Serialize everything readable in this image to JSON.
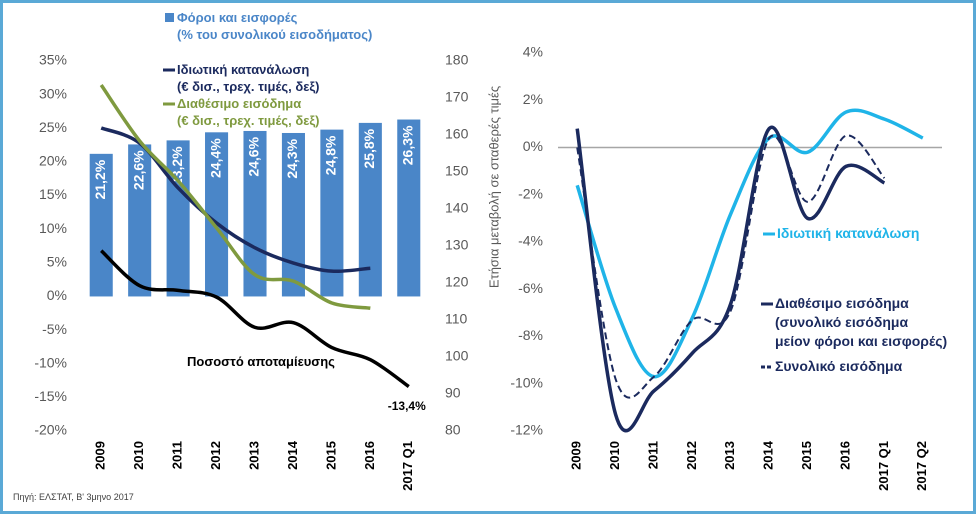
{
  "chart_data": [
    {
      "type": "bar",
      "categories": [
        "2009",
        "2010",
        "2011",
        "2012",
        "2013",
        "2014",
        "2015",
        "2016",
        "2017 Q1"
      ],
      "series": [
        {
          "name": "Φόροι και εισφορές\n(% του συνολικού εισοδήματος)",
          "type": "bar",
          "color": "#4a86c8",
          "values": [
            21.2,
            22.6,
            23.2,
            24.4,
            24.6,
            24.3,
            24.8,
            25.8,
            26.3
          ],
          "value_labels": [
            "21,2%",
            "22,6%",
            "23,2%",
            "24,4%",
            "24,6%",
            "24,3%",
            "24,8%",
            "25,8%",
            "26,3%"
          ]
        },
        {
          "name": "Ιδιωτική κατανάλωση\n(€ δισ., τρεχ. τιμές, δεξ)",
          "type": "line",
          "axis": "y2",
          "color": "#1b2a5e",
          "values": [
            161.9,
            157.8,
            145.7,
            136.2,
            129.5,
            125.4,
            123.2,
            124.0,
            null
          ]
        },
        {
          "name": "Διαθέσιμο εισόδημα\n(€ δισ., τρεχ. τιμές, δεξ)",
          "type": "line",
          "axis": "y2",
          "color": "#7f9a3f",
          "values": [
            173.5,
            158.4,
            147.6,
            134.9,
            122.2,
            120.5,
            114.6,
            113.2,
            null
          ]
        },
        {
          "name": "Ποσοστό αποταμίευσης",
          "type": "line",
          "color": "#000000",
          "values": [
            6.8,
            1.6,
            0.9,
            -0.1,
            -4.6,
            -3.9,
            -7.6,
            -9.4,
            -13.4
          ],
          "value_labels": [
            null,
            null,
            null,
            null,
            null,
            null,
            null,
            null,
            "-13,4%"
          ]
        }
      ],
      "ylim": [
        -20,
        35
      ],
      "yticks": [
        {
          "value": -20,
          "label": "-20%"
        },
        {
          "value": -15,
          "label": "-15%"
        },
        {
          "value": -10,
          "label": "-10%"
        },
        {
          "value": -5,
          "label": "-5%"
        },
        {
          "value": 0,
          "label": "0%"
        },
        {
          "value": 5,
          "label": "5%"
        },
        {
          "value": 10,
          "label": "10%"
        },
        {
          "value": 15,
          "label": "15%"
        },
        {
          "value": 20,
          "label": "20%"
        },
        {
          "value": 25,
          "label": "25%"
        },
        {
          "value": 30,
          "label": "30%"
        },
        {
          "value": 35,
          "label": "35%"
        }
      ],
      "y2lim": [
        80,
        180
      ],
      "y2ticks": [
        80,
        90,
        100,
        110,
        120,
        130,
        140,
        150,
        160,
        170,
        180
      ],
      "source": "Πηγή: ΕΛΣΤΑΤ, Β' 3μηνο 2017"
    },
    {
      "type": "line",
      "y_label": "Ετήσια μεταβολή σε σταθερές τιμές",
      "categories": [
        "2009",
        "2010",
        "2011",
        "2012",
        "2013",
        "2014",
        "2015",
        "2016",
        "2017 Q1",
        "2017 Q2"
      ],
      "series": [
        {
          "name": "Ιδιωτική κατανάλωση",
          "color": "#1fb4e8",
          "dash": false,
          "values": [
            -1.6,
            -6.8,
            -9.7,
            -7.2,
            -2.8,
            0.4,
            -0.2,
            1.5,
            1.2,
            0.4
          ]
        },
        {
          "name": "Διαθέσιμο εισόδημα\n(συνολικό εισόδημα\nμείον φόροι και εισφορές)",
          "color": "#1b2a5e",
          "dash": false,
          "values": [
            0.8,
            -11.3,
            -10.3,
            -8.7,
            -6.6,
            0.8,
            -3.0,
            -0.8,
            -1.5,
            null
          ]
        },
        {
          "name": "Συνολικό εισόδημα",
          "color": "#1b2a5e",
          "dash": true,
          "values": [
            0.0,
            -9.8,
            -9.7,
            -7.3,
            -6.9,
            0.4,
            -2.3,
            0.5,
            -1.3,
            null
          ]
        }
      ],
      "ylim": [
        -12,
        4
      ],
      "yticks": [
        {
          "value": -12,
          "label": "-12%"
        },
        {
          "value": -10,
          "label": "-10%"
        },
        {
          "value": -8,
          "label": "-8%"
        },
        {
          "value": -6,
          "label": "-6%"
        },
        {
          "value": -4,
          "label": "-4%"
        },
        {
          "value": -2,
          "label": "-2%"
        },
        {
          "value": 0,
          "label": "0%"
        },
        {
          "value": 2,
          "label": "2%"
        },
        {
          "value": 4,
          "label": "4%"
        }
      ]
    }
  ]
}
